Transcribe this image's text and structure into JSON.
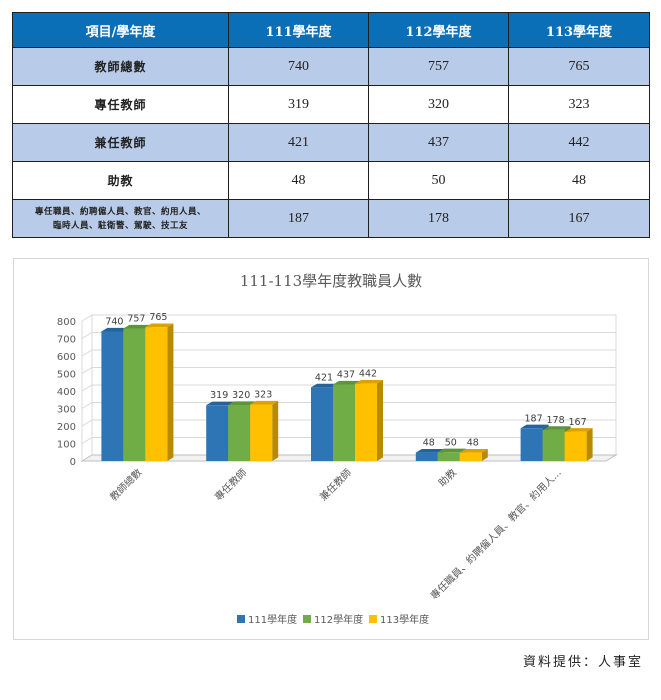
{
  "table": {
    "headers": [
      "項目/學年度",
      "111學年度",
      "112學年度",
      "113學年度"
    ],
    "rows": [
      {
        "label": "教師總數",
        "values": [
          "740",
          "757",
          "765"
        ]
      },
      {
        "label": "專任教師",
        "values": [
          "319",
          "320",
          "323"
        ]
      },
      {
        "label": "兼任教師",
        "values": [
          "421",
          "437",
          "442"
        ]
      },
      {
        "label": "助教",
        "values": [
          "48",
          "50",
          "48"
        ]
      },
      {
        "label_line1": "專任職員、約聘僱人員、教官、約用人員、",
        "label_line2": "臨時人員、駐衛警、駕駛、技工友",
        "values": [
          "187",
          "178",
          "167"
        ]
      }
    ]
  },
  "chart_data": {
    "type": "bar",
    "title": "111-113學年度教職員人數",
    "categories": [
      "教師總數",
      "專任教師",
      "兼任教師",
      "助教",
      "專任職員、約聘僱人員、教官、約用人..."
    ],
    "series": [
      {
        "name": "111學年度",
        "values": [
          740,
          319,
          421,
          48,
          187
        ],
        "color": "#2e75b6"
      },
      {
        "name": "112學年度",
        "values": [
          757,
          320,
          437,
          50,
          178
        ],
        "color": "#70ad47"
      },
      {
        "name": "113學年度",
        "values": [
          765,
          323,
          442,
          48,
          167
        ],
        "color": "#ffc000"
      }
    ],
    "yticks": [
      0,
      100,
      200,
      300,
      400,
      500,
      600,
      700,
      800
    ],
    "ylim": [
      0,
      800
    ],
    "grid": true,
    "legend_position": "bottom",
    "style": "3d-clustered-column"
  },
  "footer": {
    "source": "資料提供：人事室"
  }
}
